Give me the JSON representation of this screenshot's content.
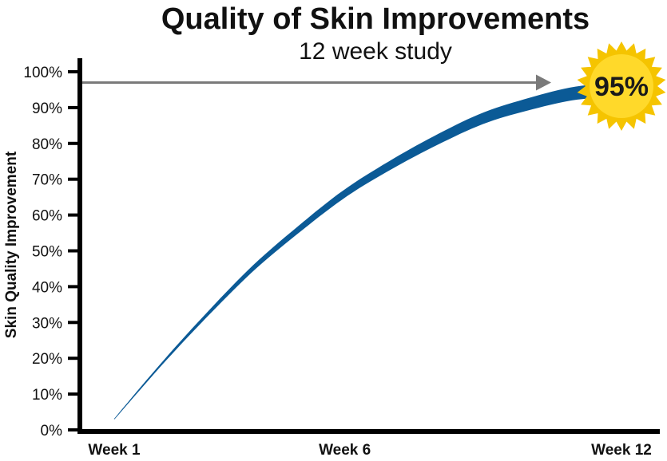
{
  "chart_data": {
    "type": "line",
    "title": "Quality of Skin Improvements",
    "subtitle": "12 week study",
    "ylabel": "Skin Quality Improvement",
    "xlabel": "",
    "yticks": [
      "0%",
      "10%",
      "20%",
      "30%",
      "40%",
      "50%",
      "60%",
      "70%",
      "80%",
      "90%",
      "100%"
    ],
    "ylim": [
      0,
      100
    ],
    "xlim": [
      1,
      12
    ],
    "xticks": [
      {
        "x": 1,
        "label": "Week 1"
      },
      {
        "x": 6,
        "label": "Week 6"
      },
      {
        "x": 12,
        "label": "Week 12"
      }
    ],
    "series": [
      {
        "x": [
          1,
          2,
          3,
          4,
          5,
          6,
          7,
          8,
          9,
          10,
          11,
          12
        ],
        "values": [
          3,
          18,
          32,
          45,
          56,
          66,
          74,
          81,
          87,
          91,
          94,
          95
        ],
        "color": "#0b5a96"
      }
    ],
    "target_value": 97,
    "annotation": {
      "text": "95%",
      "x": 12,
      "y": 95,
      "color": "#f5c400"
    },
    "arrow_color": "#7a7a7a",
    "axis_color": "#000000",
    "grid": false
  }
}
